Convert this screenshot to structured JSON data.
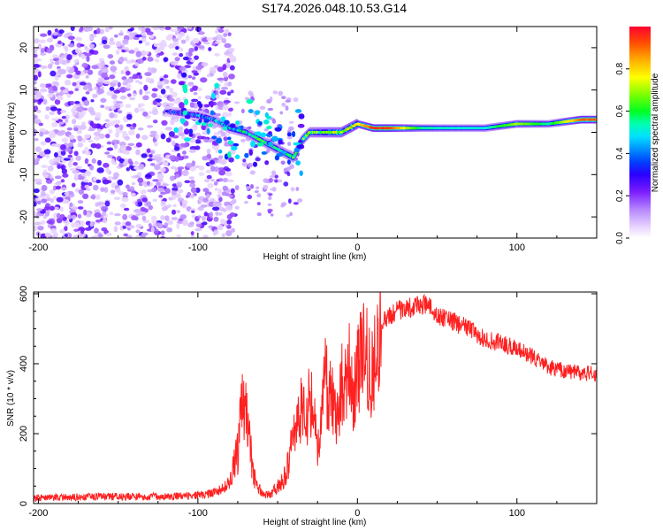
{
  "title": "S174.2026.048.10.53.G14",
  "chart_data": [
    {
      "type": "heatmap",
      "name": "spectrogram",
      "xlabel": "Height of straight line (km)",
      "ylabel": "Frequency (Hz)",
      "xlim": [
        -203,
        150
      ],
      "ylim": [
        -25,
        25
      ],
      "xticks": [
        -200,
        -100,
        0,
        100
      ],
      "yticks": [
        -20,
        -10,
        0,
        10,
        20
      ],
      "colorbar": {
        "label": "Normalized spectral amplitude",
        "range": [
          0,
          1
        ],
        "ticks": [
          0.0,
          0.2,
          0.4,
          0.6,
          0.8
        ]
      },
      "ridge": {
        "x": [
          -120,
          -100,
          -90,
          -80,
          -70,
          -60,
          -50,
          -40,
          -35,
          -30,
          -20,
          -10,
          0,
          10,
          20,
          40,
          60,
          80,
          100,
          120,
          140,
          150
        ],
        "freq": [
          5,
          4,
          3,
          1,
          0,
          -2,
          -4,
          -6,
          -2,
          0,
          0,
          0,
          2,
          1,
          1,
          1,
          1,
          1,
          2,
          2,
          3,
          3
        ],
        "amplitude": [
          0.25,
          0.35,
          0.4,
          0.45,
          0.5,
          0.55,
          0.5,
          0.55,
          0.6,
          0.6,
          0.65,
          0.7,
          0.75,
          0.95,
          0.95,
          0.55,
          0.5,
          0.5,
          0.7,
          0.55,
          0.9,
          0.9
        ]
      }
    },
    {
      "type": "line",
      "name": "snr",
      "xlabel": "Height of straight line (km)",
      "ylabel": "SNR (10 * v/v)",
      "xlim": [
        -203,
        150
      ],
      "ylim": [
        0,
        605
      ],
      "xticks": [
        -200,
        -100,
        0,
        100
      ],
      "yticks": [
        0,
        200,
        400,
        600
      ],
      "color": "#ff2020",
      "series": [
        {
          "name": "SNR",
          "x": [
            -203,
            -180,
            -160,
            -140,
            -120,
            -110,
            -100,
            -90,
            -85,
            -80,
            -75,
            -72,
            -70,
            -68,
            -65,
            -60,
            -55,
            -50,
            -45,
            -40,
            -38,
            -35,
            -32,
            -30,
            -28,
            -25,
            -22,
            -20,
            -18,
            -15,
            -12,
            -10,
            -8,
            -5,
            -2,
            0,
            2,
            5,
            8,
            10,
            12,
            15,
            20,
            25,
            30,
            35,
            40,
            45,
            50,
            60,
            70,
            80,
            90,
            100,
            110,
            120,
            130,
            140,
            150
          ],
          "values": [
            15,
            18,
            20,
            20,
            20,
            22,
            25,
            30,
            40,
            60,
            150,
            270,
            280,
            180,
            80,
            30,
            25,
            50,
            80,
            180,
            250,
            280,
            230,
            300,
            270,
            150,
            260,
            360,
            310,
            280,
            220,
            360,
            340,
            380,
            300,
            400,
            420,
            440,
            390,
            350,
            480,
            510,
            540,
            550,
            560,
            560,
            570,
            565,
            540,
            520,
            500,
            470,
            460,
            440,
            420,
            390,
            380,
            375,
            370
          ]
        }
      ]
    }
  ]
}
